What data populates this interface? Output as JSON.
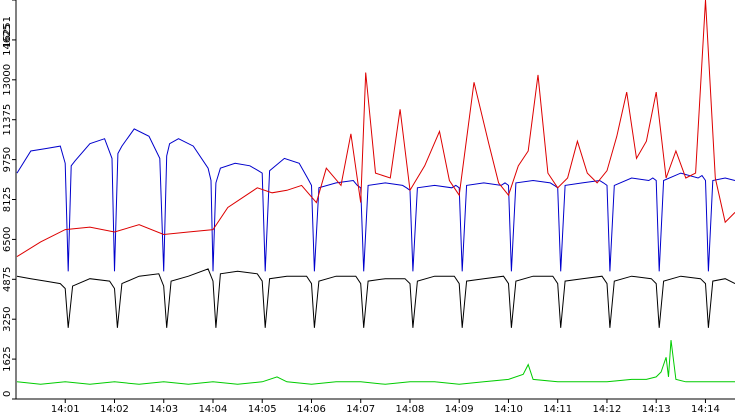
{
  "chart_data": {
    "type": "line",
    "title": "",
    "xlabel": "",
    "ylabel": "",
    "ylim": [
      0,
      16251
    ],
    "y_ticks": [
      0,
      1625,
      3250,
      4875,
      6500,
      8125,
      9750,
      11375,
      13000,
      14625,
      16251
    ],
    "x_tick_labels": [
      "14:01",
      "14:02",
      "14:03",
      "14:04",
      "14:05",
      "14:06",
      "14:07",
      "14:08",
      "14:09",
      "14:10",
      "14:11",
      "14:12",
      "14:13",
      "14:14"
    ],
    "x_range_minutes": [
      0,
      14.6
    ],
    "x_tick_positions_minutes": [
      1,
      2,
      3,
      4,
      5,
      6,
      7,
      8,
      9,
      10,
      11,
      12,
      13,
      14
    ],
    "grid": false,
    "background": "#ffffff",
    "series": [
      {
        "color": "#0000cc",
        "x": [
          0.02,
          0.3,
          0.6,
          0.9,
          1.0,
          1.06,
          1.12,
          1.2,
          1.5,
          1.8,
          1.95,
          2.0,
          2.07,
          2.15,
          2.4,
          2.7,
          2.92,
          3.0,
          3.06,
          3.12,
          3.3,
          3.6,
          3.9,
          3.96,
          4.0,
          4.06,
          4.15,
          4.45,
          4.75,
          4.92,
          5.0,
          5.06,
          5.15,
          5.45,
          5.75,
          5.92,
          6.0,
          6.06,
          6.15,
          6.5,
          6.85,
          6.93,
          7.0,
          7.06,
          7.15,
          7.5,
          7.85,
          7.93,
          8.0,
          8.06,
          8.15,
          8.5,
          8.85,
          8.93,
          9.0,
          9.06,
          9.15,
          9.5,
          9.85,
          9.93,
          10.0,
          10.06,
          10.15,
          10.5,
          10.85,
          10.93,
          11.0,
          11.06,
          11.15,
          11.5,
          11.85,
          11.93,
          12.0,
          12.06,
          12.15,
          12.5,
          12.85,
          12.93,
          13.0,
          13.06,
          13.15,
          13.5,
          13.85,
          13.93,
          14.0,
          14.06,
          14.15,
          14.4,
          14.6
        ],
        "y": [
          9200,
          10100,
          10200,
          10300,
          9600,
          5200,
          9500,
          9700,
          10400,
          10600,
          9800,
          5200,
          10000,
          10300,
          11000,
          10700,
          9800,
          5200,
          9900,
          10400,
          10600,
          10300,
          9400,
          8900,
          5200,
          8800,
          9400,
          9600,
          9500,
          9300,
          9200,
          5200,
          9300,
          9800,
          9600,
          9000,
          8700,
          5200,
          8600,
          8800,
          8900,
          8700,
          8600,
          5200,
          8700,
          8800,
          8700,
          8600,
          8500,
          5200,
          8600,
          8700,
          8600,
          8700,
          8600,
          5200,
          8700,
          8800,
          8700,
          8800,
          8700,
          5200,
          8800,
          8900,
          8800,
          8700,
          8600,
          5200,
          8700,
          8800,
          8900,
          8800,
          8700,
          5200,
          8700,
          9000,
          8900,
          9000,
          8900,
          5200,
          8900,
          9200,
          9000,
          9100,
          8900,
          5200,
          8900,
          9000,
          8900
        ]
      },
      {
        "color": "#dd0000",
        "x": [
          0.02,
          0.5,
          1.0,
          1.5,
          2.0,
          2.5,
          3.0,
          3.5,
          4.0,
          4.3,
          4.6,
          4.9,
          5.2,
          5.5,
          5.8,
          6.1,
          6.3,
          6.6,
          6.8,
          7.0,
          7.1,
          7.3,
          7.6,
          7.8,
          8.0,
          8.3,
          8.6,
          8.8,
          9.0,
          9.3,
          9.6,
          9.8,
          10.0,
          10.2,
          10.4,
          10.6,
          10.8,
          11.0,
          11.2,
          11.4,
          11.6,
          11.8,
          12.0,
          12.2,
          12.4,
          12.6,
          12.8,
          13.0,
          13.2,
          13.4,
          13.6,
          13.8,
          14.0,
          14.2,
          14.4,
          14.6
        ],
        "y": [
          5800,
          6400,
          6900,
          7000,
          6800,
          7100,
          6700,
          6800,
          6900,
          7800,
          8200,
          8600,
          8400,
          8500,
          8700,
          8000,
          9400,
          8700,
          10800,
          8000,
          13300,
          9200,
          9000,
          11800,
          8500,
          9500,
          10900,
          8900,
          8300,
          12900,
          10400,
          8800,
          8300,
          9500,
          10100,
          13200,
          9200,
          8600,
          9000,
          10500,
          9200,
          8800,
          9300,
          10700,
          12500,
          9800,
          10500,
          12500,
          9000,
          10100,
          9000,
          9200,
          16251,
          9000,
          7200,
          7600
        ]
      },
      {
        "color": "#000000",
        "x": [
          0.02,
          0.3,
          0.6,
          0.9,
          1.0,
          1.06,
          1.15,
          1.5,
          1.9,
          2.0,
          2.06,
          2.15,
          2.5,
          2.9,
          3.0,
          3.06,
          3.15,
          3.5,
          3.9,
          4.0,
          4.06,
          4.15,
          4.5,
          4.9,
          5.0,
          5.06,
          5.15,
          5.5,
          5.9,
          6.0,
          6.06,
          6.15,
          6.5,
          6.9,
          7.0,
          7.06,
          7.15,
          7.5,
          7.9,
          8.0,
          8.06,
          8.15,
          8.5,
          8.9,
          9.0,
          9.06,
          9.15,
          9.5,
          9.9,
          10.0,
          10.06,
          10.15,
          10.5,
          10.9,
          11.0,
          11.06,
          11.15,
          11.5,
          11.9,
          12.0,
          12.06,
          12.15,
          12.5,
          12.9,
          13.0,
          13.06,
          13.15,
          13.5,
          13.9,
          14.0,
          14.06,
          14.15,
          14.4,
          14.6
        ],
        "y": [
          5000,
          4900,
          4800,
          4700,
          4500,
          2900,
          4600,
          4900,
          4800,
          4500,
          2900,
          4700,
          5000,
          5100,
          4600,
          2900,
          4800,
          5000,
          5300,
          4800,
          2900,
          5100,
          5200,
          5100,
          4800,
          2900,
          4900,
          5000,
          5000,
          4700,
          2900,
          4800,
          5000,
          5000,
          4700,
          2900,
          4800,
          4900,
          4900,
          4700,
          2900,
          4800,
          5000,
          5000,
          4700,
          2900,
          4800,
          4900,
          5000,
          4700,
          2900,
          4800,
          5000,
          5000,
          4700,
          2900,
          4800,
          4900,
          5000,
          4700,
          2900,
          4800,
          5000,
          4900,
          4700,
          2900,
          4800,
          5000,
          4900,
          4700,
          2900,
          4800,
          4900,
          4700
        ]
      },
      {
        "color": "#00cc00",
        "x": [
          0.02,
          0.5,
          1.0,
          1.5,
          2.0,
          2.5,
          3.0,
          3.5,
          4.0,
          4.5,
          5.0,
          5.3,
          5.5,
          6.0,
          6.5,
          7.0,
          7.5,
          8.0,
          8.5,
          9.0,
          9.5,
          10.0,
          10.3,
          10.4,
          10.5,
          11.0,
          11.5,
          12.0,
          12.5,
          12.8,
          13.0,
          13.1,
          13.2,
          13.25,
          13.3,
          13.4,
          13.6,
          14.0,
          14.5,
          14.6
        ],
        "y": [
          700,
          600,
          700,
          600,
          700,
          600,
          700,
          600,
          700,
          600,
          700,
          900,
          700,
          600,
          700,
          700,
          600,
          700,
          700,
          600,
          700,
          800,
          1000,
          1400,
          800,
          700,
          700,
          700,
          800,
          800,
          900,
          1100,
          1700,
          900,
          2400,
          800,
          700,
          700,
          700,
          700
        ]
      }
    ]
  }
}
